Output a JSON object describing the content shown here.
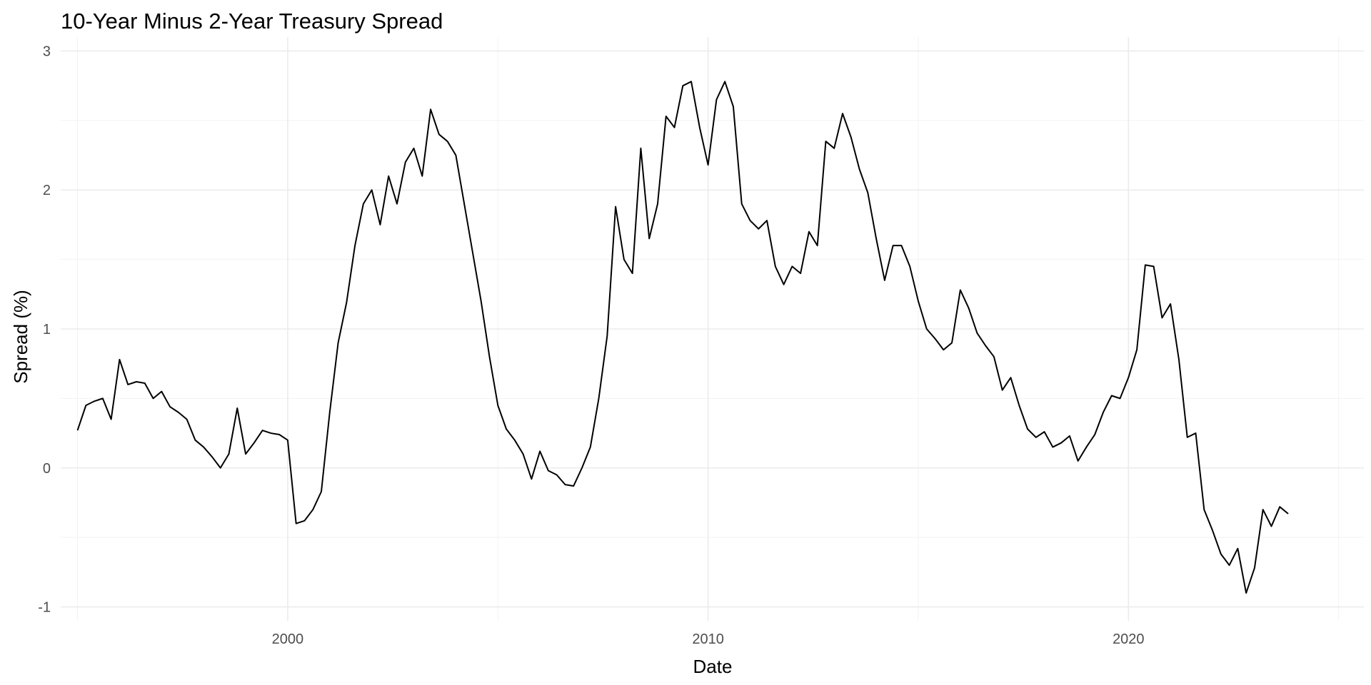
{
  "chart_data": {
    "type": "line",
    "title": "10-Year Minus 2-Year Treasury Spread",
    "xlabel": "Date",
    "ylabel": "Spread (%)",
    "xlim": [
      1994.6,
      2025.6
    ],
    "ylim": [
      -1.1,
      3.1
    ],
    "x_ticks": [
      2000,
      2010,
      2020
    ],
    "x_minor_ticks": [
      1995,
      2005,
      2015,
      2025
    ],
    "y_ticks": [
      -1,
      0,
      1,
      2,
      3
    ],
    "y_minor_ticks": [
      -0.5,
      0.5,
      1.5,
      2.5
    ],
    "grid": true,
    "legend": "none",
    "series": [
      {
        "color": "#000000",
        "x": [
          1995.0,
          1995.2,
          1995.4,
          1995.6,
          1995.8,
          1996.0,
          1996.2,
          1996.4,
          1996.6,
          1996.8,
          1997.0,
          1997.2,
          1997.4,
          1997.6,
          1997.8,
          1998.0,
          1998.2,
          1998.4,
          1998.6,
          1998.8,
          1999.0,
          1999.2,
          1999.4,
          1999.6,
          1999.8,
          2000.0,
          2000.2,
          2000.4,
          2000.6,
          2000.8,
          2001.0,
          2001.2,
          2001.4,
          2001.6,
          2001.8,
          2002.0,
          2002.2,
          2002.4,
          2002.6,
          2002.8,
          2003.0,
          2003.2,
          2003.4,
          2003.6,
          2003.8,
          2004.0,
          2004.2,
          2004.4,
          2004.6,
          2004.8,
          2005.0,
          2005.2,
          2005.4,
          2005.6,
          2005.8,
          2006.0,
          2006.2,
          2006.4,
          2006.6,
          2006.8,
          2007.0,
          2007.2,
          2007.4,
          2007.6,
          2007.8,
          2008.0,
          2008.2,
          2008.4,
          2008.6,
          2008.8,
          2009.0,
          2009.2,
          2009.4,
          2009.6,
          2009.8,
          2010.0,
          2010.2,
          2010.4,
          2010.6,
          2010.8,
          2011.0,
          2011.2,
          2011.4,
          2011.6,
          2011.8,
          2012.0,
          2012.2,
          2012.4,
          2012.6,
          2012.8,
          2013.0,
          2013.2,
          2013.4,
          2013.6,
          2013.8,
          2014.0,
          2014.2,
          2014.4,
          2014.6,
          2014.8,
          2015.0,
          2015.2,
          2015.4,
          2015.6,
          2015.8,
          2016.0,
          2016.2,
          2016.4,
          2016.6,
          2016.8,
          2017.0,
          2017.2,
          2017.4,
          2017.6,
          2017.8,
          2018.0,
          2018.2,
          2018.4,
          2018.6,
          2018.8,
          2019.0,
          2019.2,
          2019.4,
          2019.6,
          2019.8,
          2020.0,
          2020.2,
          2020.4,
          2020.6,
          2020.8,
          2021.0,
          2021.2,
          2021.4,
          2021.6,
          2021.8,
          2022.0,
          2022.2,
          2022.4,
          2022.6,
          2022.8,
          2023.0,
          2023.2,
          2023.4,
          2023.6,
          2023.8
        ],
        "values": [
          0.27,
          0.45,
          0.48,
          0.5,
          0.35,
          0.78,
          0.6,
          0.62,
          0.61,
          0.5,
          0.55,
          0.44,
          0.4,
          0.35,
          0.2,
          0.15,
          0.08,
          0.0,
          0.1,
          0.43,
          0.1,
          0.18,
          0.27,
          0.25,
          0.24,
          0.2,
          -0.4,
          -0.38,
          -0.3,
          -0.17,
          0.4,
          0.9,
          1.19,
          1.6,
          1.9,
          2.0,
          1.75,
          2.1,
          1.9,
          2.2,
          2.3,
          2.1,
          2.58,
          2.4,
          2.35,
          2.25,
          1.9,
          1.55,
          1.2,
          0.8,
          0.45,
          0.28,
          0.2,
          0.1,
          -0.08,
          0.12,
          -0.02,
          -0.05,
          -0.12,
          -0.13,
          0.0,
          0.15,
          0.5,
          0.95,
          1.88,
          1.5,
          1.4,
          2.3,
          1.65,
          1.9,
          2.53,
          2.45,
          2.75,
          2.78,
          2.45,
          2.18,
          2.65,
          2.78,
          2.6,
          1.9,
          1.78,
          1.72,
          1.78,
          1.45,
          1.32,
          1.45,
          1.4,
          1.7,
          1.6,
          2.35,
          2.3,
          2.55,
          2.38,
          2.15,
          1.98,
          1.65,
          1.35,
          1.6,
          1.6,
          1.45,
          1.2,
          1.0,
          0.93,
          0.85,
          0.9,
          1.28,
          1.15,
          0.97,
          0.88,
          0.8,
          0.56,
          0.65,
          0.45,
          0.28,
          0.22,
          0.26,
          0.15,
          0.18,
          0.23,
          0.05,
          0.15,
          0.24,
          0.4,
          0.52,
          0.5,
          0.65,
          0.85,
          1.46,
          1.45,
          1.08,
          1.18,
          0.78,
          0.22,
          0.25,
          -0.3,
          -0.45,
          -0.62,
          -0.7,
          -0.58,
          -0.9,
          -0.72,
          -0.3,
          -0.42,
          -0.28,
          -0.33
        ]
      }
    ]
  }
}
